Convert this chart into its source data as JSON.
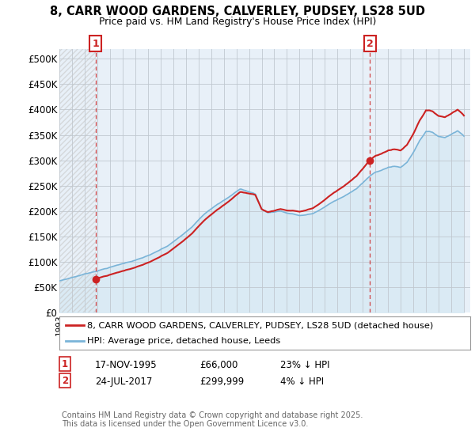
{
  "title_line1": "8, CARR WOOD GARDENS, CALVERLEY, PUDSEY, LS28 5UD",
  "title_line2": "Price paid vs. HM Land Registry's House Price Index (HPI)",
  "ylim": [
    0,
    520000
  ],
  "ytick_labels": [
    "£0",
    "£50K",
    "£100K",
    "£150K",
    "£200K",
    "£250K",
    "£300K",
    "£350K",
    "£400K",
    "£450K",
    "£500K"
  ],
  "ytick_vals": [
    0,
    50000,
    100000,
    150000,
    200000,
    250000,
    300000,
    350000,
    400000,
    450000,
    500000
  ],
  "hpi_color": "#7ab4d8",
  "hpi_fill_color": "#daeaf4",
  "price_color": "#cc2222",
  "bg_color": "#ffffff",
  "plot_bg_color": "#e8f0f8",
  "grid_color": "#c0c8d0",
  "hatch_color": "#c8c8c8",
  "legend_label_property": "8, CARR WOOD GARDENS, CALVERLEY, PUDSEY, LS28 5UD (detached house)",
  "legend_label_hpi": "HPI: Average price, detached house, Leeds",
  "transaction_1_date": "17-NOV-1995",
  "transaction_1_price": "£66,000",
  "transaction_1_hpi": "23% ↓ HPI",
  "transaction_2_date": "24-JUL-2017",
  "transaction_2_price": "£299,999",
  "transaction_2_hpi": "4% ↓ HPI",
  "footnote": "Contains HM Land Registry data © Crown copyright and database right 2025.\nThis data is licensed under the Open Government Licence v3.0.",
  "vline1_x": 1995.88,
  "vline2_x": 2017.56,
  "sale1_x": 1995.88,
  "sale1_y": 66000,
  "sale2_x": 2017.56,
  "sale2_y": 299999,
  "xmin": 1993.0,
  "xmax": 2025.5
}
